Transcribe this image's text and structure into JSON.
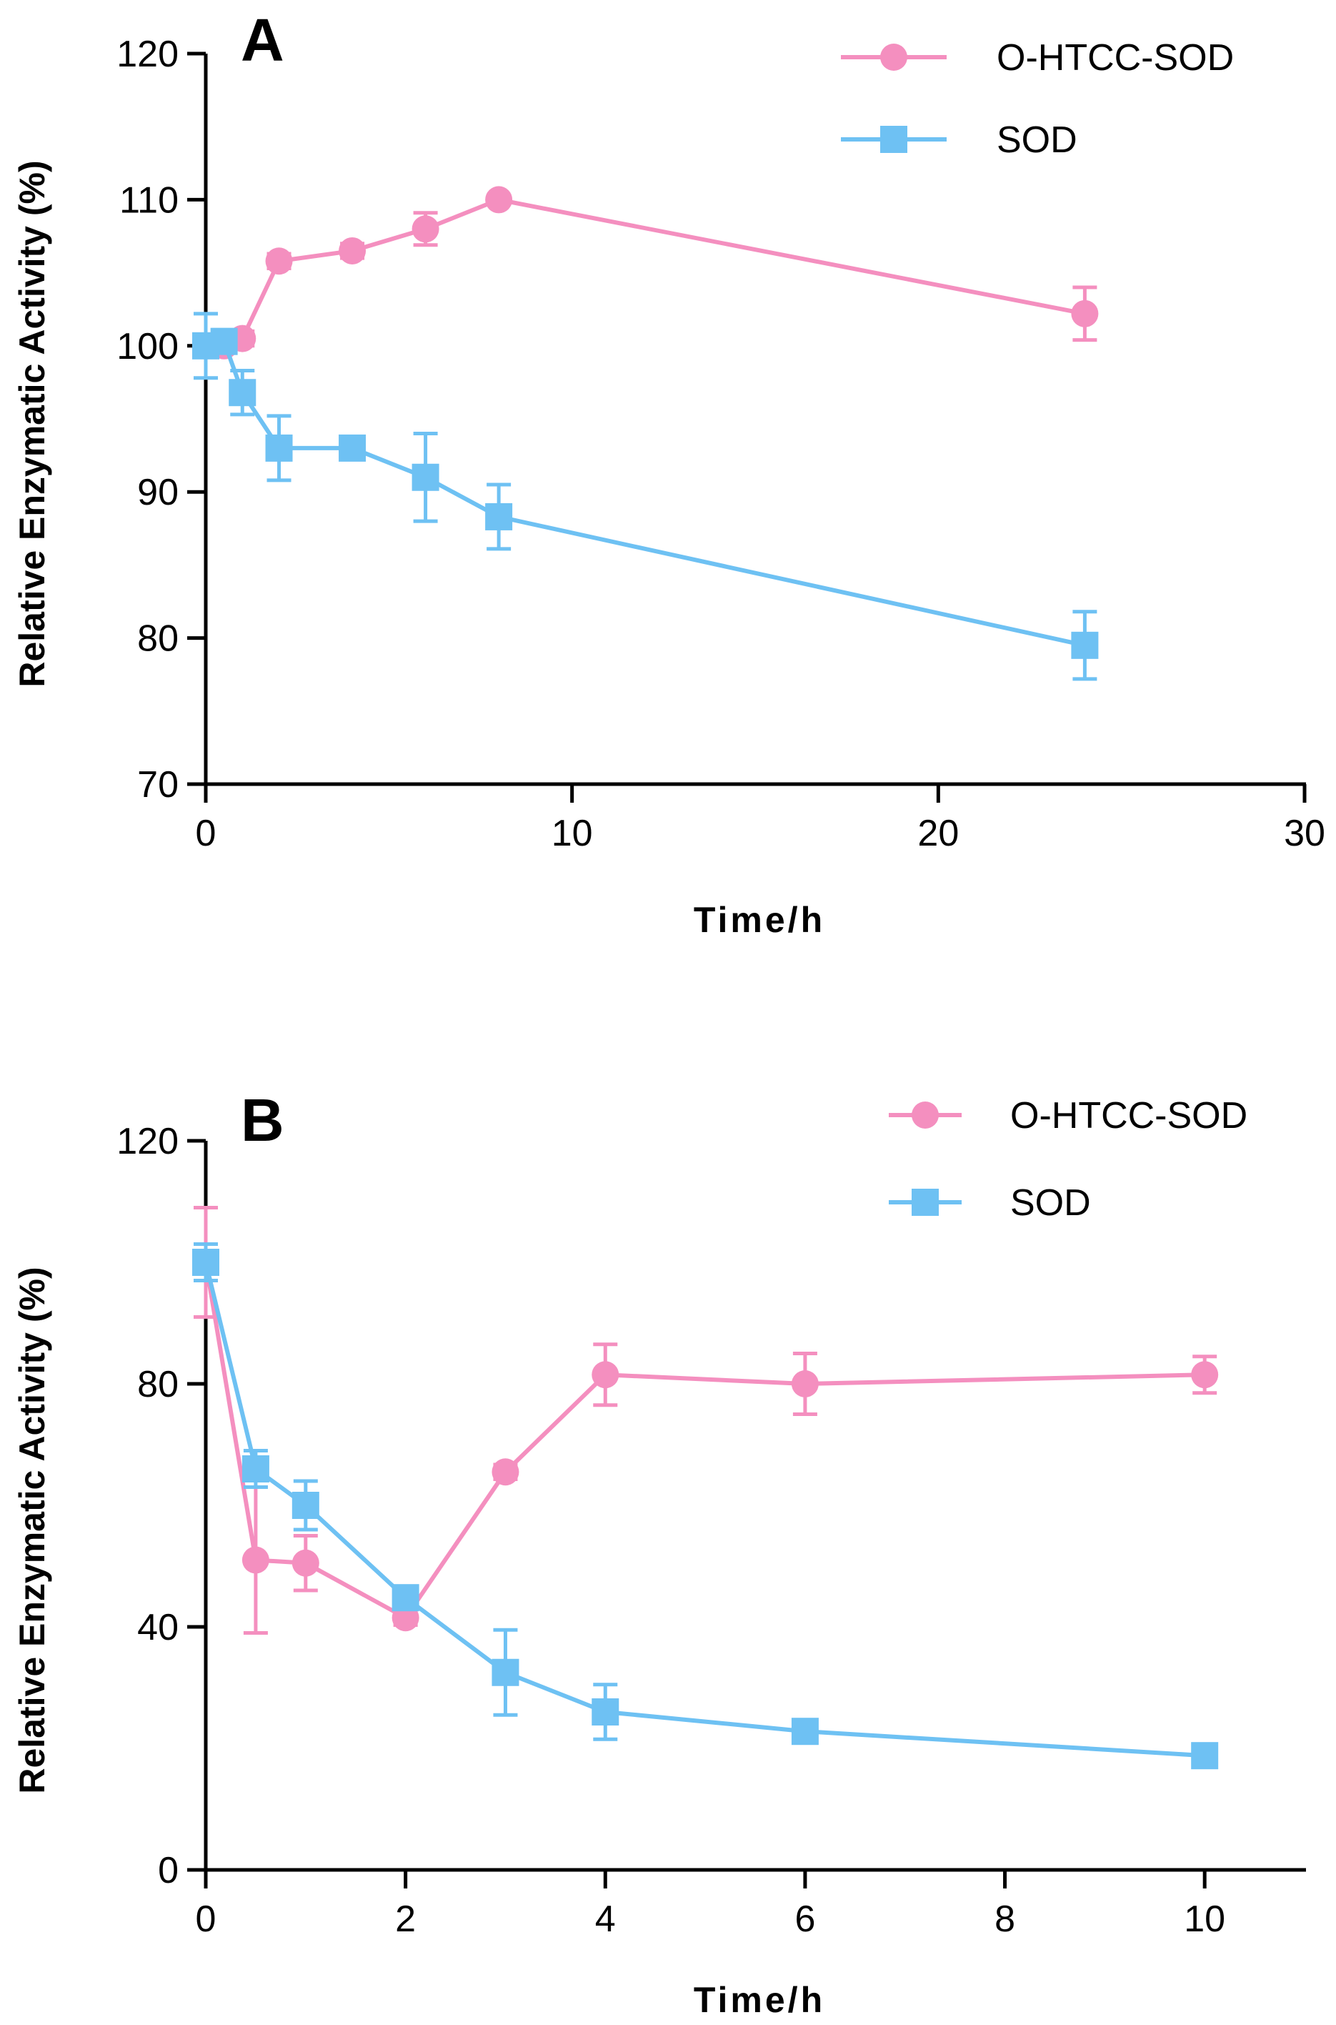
{
  "colors": {
    "o_htcc_sod": "#F48FBF",
    "sod": "#6EC1F3",
    "axis": "#000000"
  },
  "chart_data": [
    {
      "panel": "A",
      "type": "line",
      "xlabel": "Time/h",
      "ylabel": "Relative Enzymatic Activity (%)",
      "xlim": [
        0,
        30
      ],
      "ylim": [
        70,
        120
      ],
      "xticks": [
        0,
        10,
        20,
        30
      ],
      "yticks": [
        70,
        80,
        90,
        100,
        110,
        120
      ],
      "legend_position": "top-right",
      "series": [
        {
          "name": "O-HTCC-SOD",
          "marker": "circle",
          "color": "#F48FBF",
          "x": [
            0,
            0.5,
            1,
            2,
            4,
            6,
            8,
            24
          ],
          "y": [
            100,
            100,
            100.5,
            105.8,
            106.5,
            108,
            110,
            102.2
          ],
          "err": [
            0.5,
            0.5,
            0.5,
            0.5,
            0.5,
            1.1,
            0.3,
            1.8
          ]
        },
        {
          "name": "SOD",
          "marker": "square",
          "color": "#6EC1F3",
          "x": [
            0,
            0.5,
            1,
            2,
            4,
            6,
            8,
            24
          ],
          "y": [
            100,
            100.3,
            96.8,
            93,
            93,
            91,
            88.3,
            79.5
          ],
          "err": [
            2.2,
            0.8,
            1.5,
            2.2,
            0.4,
            3.0,
            2.2,
            2.3
          ]
        }
      ]
    },
    {
      "panel": "B",
      "type": "line",
      "xlabel": "Time/h",
      "ylabel": "Relative Enzymatic Activity (%)",
      "xlim": [
        0,
        11
      ],
      "ylim": [
        0,
        120
      ],
      "xticks": [
        0,
        2,
        4,
        6,
        8,
        10
      ],
      "yticks": [
        0,
        40,
        80,
        120
      ],
      "legend_position": "top-right",
      "series": [
        {
          "name": "O-HTCC-SOD",
          "marker": "circle",
          "color": "#F48FBF",
          "x": [
            0,
            0.5,
            1,
            2,
            3,
            4,
            6,
            10
          ],
          "y": [
            100,
            51,
            50.5,
            41.5,
            65.5,
            81.5,
            80,
            81.5
          ],
          "err": [
            9,
            12,
            4.5,
            1.2,
            1.2,
            5,
            5,
            3
          ]
        },
        {
          "name": "SOD",
          "marker": "square",
          "color": "#6EC1F3",
          "x": [
            0,
            0.5,
            1,
            2,
            3,
            4,
            6,
            10
          ],
          "y": [
            100,
            66,
            60,
            44.8,
            32.5,
            26,
            22.8,
            18.8
          ],
          "err": [
            3,
            3,
            4,
            1.2,
            7,
            4.5,
            1.2,
            1.2
          ]
        }
      ]
    }
  ]
}
